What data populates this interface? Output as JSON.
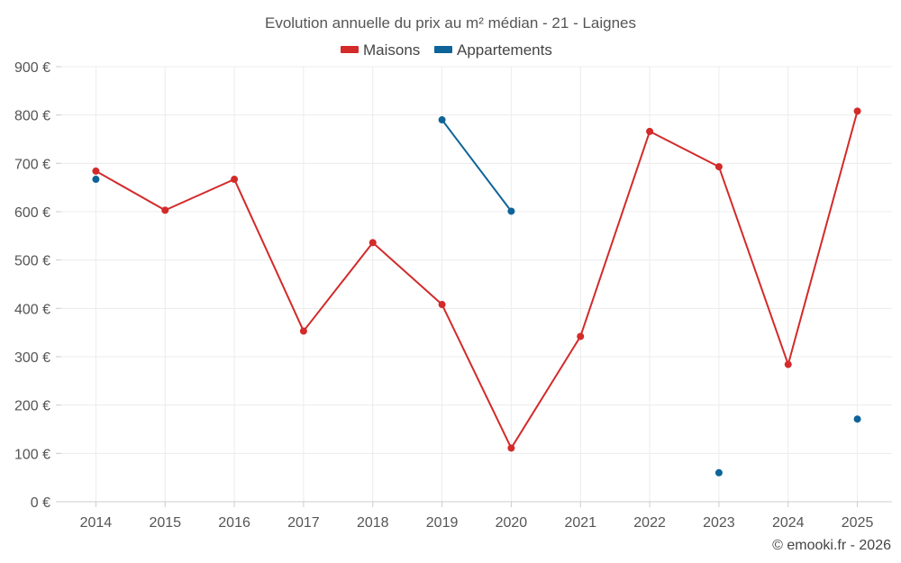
{
  "chart_data": {
    "type": "line",
    "title": "Evolution annuelle du prix au m² médian - 21 - Laignes",
    "categories": [
      "2014",
      "2015",
      "2016",
      "2017",
      "2018",
      "2019",
      "2020",
      "2021",
      "2022",
      "2023",
      "2024",
      "2025"
    ],
    "ylim": [
      0,
      900
    ],
    "yticks": [
      0,
      100,
      200,
      300,
      400,
      500,
      600,
      700,
      800,
      900
    ],
    "y_tick_labels": [
      "0 €",
      "100 €",
      "200 €",
      "300 €",
      "400 €",
      "500 €",
      "600 €",
      "700 €",
      "800 €",
      "900 €"
    ],
    "grid": true,
    "legend_position": "top-center",
    "series": [
      {
        "name": "Maisons",
        "color": "#d32a2a",
        "values": [
          684,
          603,
          667,
          353,
          536,
          408,
          111,
          342,
          766,
          693,
          284,
          808
        ]
      },
      {
        "name": "Appartements",
        "color": "#0e6498",
        "values": [
          667,
          null,
          null,
          null,
          null,
          790,
          601,
          null,
          null,
          60,
          null,
          171
        ]
      }
    ],
    "credit": "© emooki.fr - 2026"
  }
}
